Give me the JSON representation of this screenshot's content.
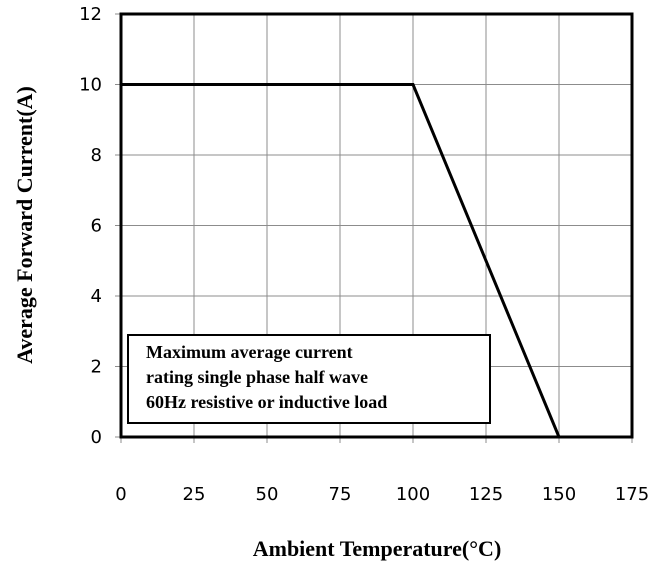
{
  "chart_data": {
    "type": "line",
    "title": "",
    "xlabel": "Ambient Temperature(°C)",
    "ylabel": "Average Forward Current(A)",
    "xlim": [
      0,
      175
    ],
    "ylim": [
      0,
      12
    ],
    "xticks": [
      "0",
      "25",
      "50",
      "75",
      "100",
      "125",
      "150",
      "175"
    ],
    "yticks": [
      "0",
      "2",
      "4",
      "6",
      "8",
      "10",
      "12"
    ],
    "grid": true,
    "series": [
      {
        "x": [
          0,
          100,
          150
        ],
        "y": [
          10,
          10,
          0
        ],
        "color": "#000000"
      }
    ],
    "annotation": {
      "lines": [
        "Maximum average current",
        "rating single phase half wave",
        "60Hz resistive or inductive load"
      ]
    }
  }
}
